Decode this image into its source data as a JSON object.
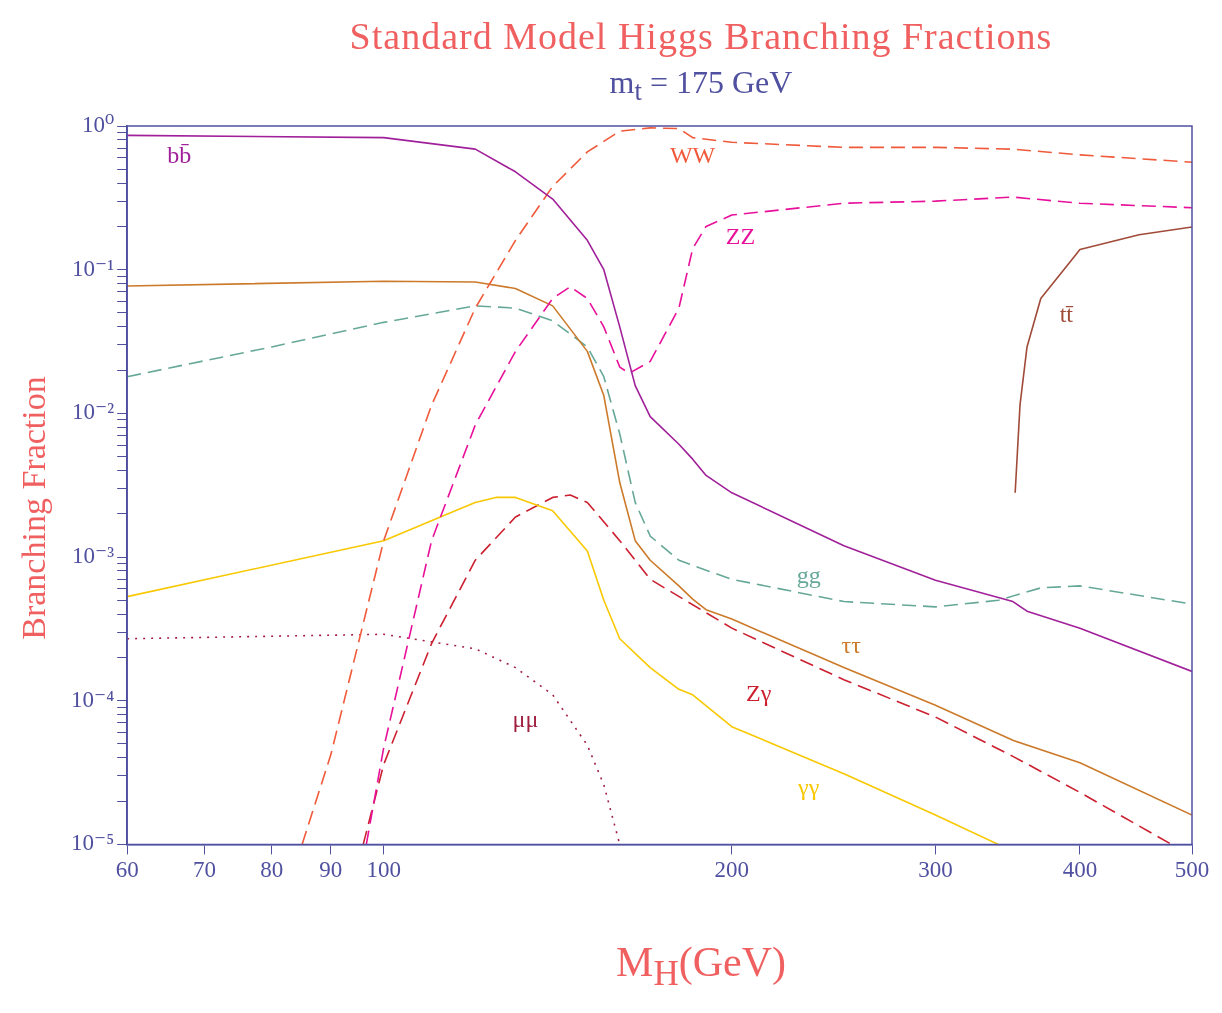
{
  "chart_data": {
    "type": "line",
    "title": "Standard Model Higgs Branching Fractions",
    "subtitle": "m$_{t}$ = 175 GeV",
    "xlabel": "M$_{H}$(GeV)",
    "ylabel": "Branching Fraction",
    "log": "xy",
    "xlim": [
      60,
      500
    ],
    "xticks": [
      60,
      70,
      80,
      90,
      100,
      200,
      300,
      400,
      500
    ],
    "ylim": [
      1e-05,
      1
    ],
    "yticks": [
      {
        "value": 1,
        "label": "10⁰"
      },
      {
        "value": 0.1,
        "label": "10⁻¹"
      },
      {
        "value": 0.01,
        "label": "10⁻²"
      },
      {
        "value": 0.001,
        "label": "10⁻³"
      },
      {
        "value": 0.0001,
        "label": "10⁻⁴"
      },
      {
        "value": 1e-05,
        "label": "10⁻⁵"
      },
      {
        "value": 0.2,
        "label": null
      },
      {
        "value": 0.3,
        "label": null
      },
      {
        "value": 0.4,
        "label": null
      },
      {
        "value": 0.5,
        "label": null
      },
      {
        "value": 0.6,
        "label": null
      },
      {
        "value": 0.7,
        "label": null
      },
      {
        "value": 0.8,
        "label": null
      },
      {
        "value": 0.9,
        "label": null
      },
      {
        "value": 0.02,
        "label": null
      },
      {
        "value": 0.03,
        "label": null
      },
      {
        "value": 0.04,
        "label": null
      },
      {
        "value": 0.05,
        "label": null
      },
      {
        "value": 0.06,
        "label": null
      },
      {
        "value": 0.07,
        "label": null
      },
      {
        "value": 0.08,
        "label": null
      },
      {
        "value": 0.09,
        "label": null
      },
      {
        "value": 0.002,
        "label": null
      },
      {
        "value": 0.003,
        "label": null
      },
      {
        "value": 0.004,
        "label": null
      },
      {
        "value": 0.005,
        "label": null
      },
      {
        "value": 0.006,
        "label": null
      },
      {
        "value": 0.007,
        "label": null
      },
      {
        "value": 0.008,
        "label": null
      },
      {
        "value": 0.009,
        "label": null
      },
      {
        "value": 0.0002,
        "label": null
      },
      {
        "value": 0.0003,
        "label": null
      },
      {
        "value": 0.0004,
        "label": null
      },
      {
        "value": 0.0005,
        "label": null
      },
      {
        "value": 0.0006,
        "label": null
      },
      {
        "value": 0.0007,
        "label": null
      },
      {
        "value": 0.0008,
        "label": null
      },
      {
        "value": 0.0009,
        "label": null
      },
      {
        "value": 2e-05,
        "label": null
      },
      {
        "value": 3e-05,
        "label": null
      },
      {
        "value": 4e-05,
        "label": null
      },
      {
        "value": 5e-05,
        "label": null
      },
      {
        "value": 6e-05,
        "label": null
      },
      {
        "value": 7e-05,
        "label": null
      },
      {
        "value": 8e-05,
        "label": null
      },
      {
        "value": 9e-05,
        "label": null
      }
    ],
    "series": [
      {
        "name": "bb̄",
        "color": "#a0209a",
        "line_style": "solid",
        "x": [
          60,
          100,
          120,
          130,
          140,
          150,
          155,
          160,
          165,
          170,
          180,
          185,
          190,
          200,
          250,
          300,
          350,
          360,
          400,
          500
        ],
        "values": [
          0.86,
          0.83,
          0.69,
          0.48,
          0.31,
          0.16,
          0.1,
          0.04,
          0.0156,
          0.0095,
          0.0061,
          0.0048,
          0.0037,
          0.0028,
          0.0012,
          0.00069,
          0.00049,
          0.00042,
          0.00032,
          0.00016
        ]
      },
      {
        "name": "WW",
        "color": "#f05a3a",
        "line_style": "dashed",
        "x": [
          85,
          90,
          100,
          110,
          120,
          130,
          140,
          150,
          160,
          170,
          180,
          185,
          200,
          250,
          300,
          350,
          400,
          500
        ],
        "values": [
          1e-05,
          4.2e-05,
          0.0013,
          0.0114,
          0.054,
          0.16,
          0.38,
          0.66,
          0.92,
          0.97,
          0.96,
          0.83,
          0.77,
          0.71,
          0.71,
          0.69,
          0.63,
          0.56
        ]
      },
      {
        "name": "ZZ",
        "color": "#e8109a",
        "line_style": "dashed",
        "x": [
          96.6,
          100,
          110,
          120,
          130,
          140,
          145,
          150,
          155,
          160,
          163,
          170,
          180,
          185,
          190,
          200,
          250,
          300,
          350,
          400,
          500
        ],
        "values": [
          1e-05,
          4.7e-05,
          0.0013,
          0.0083,
          0.027,
          0.063,
          0.076,
          0.063,
          0.04,
          0.021,
          0.019,
          0.023,
          0.054,
          0.14,
          0.2,
          0.24,
          0.29,
          0.3,
          0.32,
          0.29,
          0.27
        ]
      },
      {
        "name": "tt̄",
        "color": "#a04a38",
        "line_style": "solid",
        "x": [
          351.6,
          355,
          360,
          370,
          400,
          450,
          500
        ],
        "values": [
          0.0028,
          0.0114,
          0.029,
          0.063,
          0.138,
          0.175,
          0.198
        ]
      },
      {
        "name": "ττ",
        "color": "#cc7a2a",
        "line_style": "solid",
        "x": [
          60,
          100,
          120,
          130,
          140,
          150,
          155,
          160,
          165,
          170,
          180,
          185,
          190,
          200,
          250,
          300,
          350,
          400,
          500
        ],
        "values": [
          0.077,
          0.083,
          0.082,
          0.074,
          0.056,
          0.027,
          0.0133,
          0.0033,
          0.0013,
          0.00095,
          0.00063,
          0.00051,
          0.00043,
          0.00037,
          0.00017,
          9.3e-05,
          5.3e-05,
          3.7e-05,
          1.6e-05
        ]
      },
      {
        "name": "gg",
        "color": "#66a898",
        "line_style": "dashed",
        "x": [
          60,
          80,
          100,
          120,
          130,
          140,
          150,
          155,
          160,
          165,
          170,
          180,
          190,
          200,
          250,
          300,
          340,
          370,
          400,
          500
        ],
        "values": [
          0.018,
          0.029,
          0.043,
          0.056,
          0.054,
          0.044,
          0.029,
          0.018,
          0.0072,
          0.0024,
          0.0014,
          0.00095,
          0.00081,
          0.0007,
          0.00049,
          0.00045,
          0.0005,
          0.00061,
          0.00063,
          0.00047
        ]
      },
      {
        "name": "γγ",
        "color": "#f8c800",
        "line_style": "solid",
        "x": [
          60,
          100,
          120,
          125,
          130,
          140,
          150,
          155,
          160,
          170,
          180,
          185,
          200,
          250,
          300,
          340
        ],
        "values": [
          0.00053,
          0.0013,
          0.0024,
          0.0026,
          0.0026,
          0.0021,
          0.0011,
          0.0005,
          0.00027,
          0.00017,
          0.00012,
          0.00011,
          6.6e-05,
          3.1e-05,
          1.6e-05,
          1e-05
        ]
      },
      {
        "name": "Zγ",
        "color": "#cc2030",
        "line_style": "dashed",
        "x": [
          96,
          100,
          110,
          120,
          130,
          140,
          145,
          150,
          160,
          170,
          200,
          250,
          300,
          350,
          400,
          480
        ],
        "values": [
          1e-05,
          3.6e-05,
          0.00025,
          0.00095,
          0.0019,
          0.0026,
          0.0027,
          0.0024,
          0.0013,
          0.0007,
          0.00032,
          0.00014,
          7.7e-05,
          4.1e-05,
          2.3e-05,
          1e-05
        ]
      },
      {
        "name": "μμ",
        "color": "#a02040",
        "line_style": "dotted",
        "x": [
          60,
          100,
          120,
          130,
          140,
          150,
          155,
          160
        ],
        "values": [
          0.00027,
          0.00029,
          0.00023,
          0.00017,
          0.00011,
          4.9e-05,
          2.6e-05,
          1e-05
        ]
      }
    ]
  }
}
